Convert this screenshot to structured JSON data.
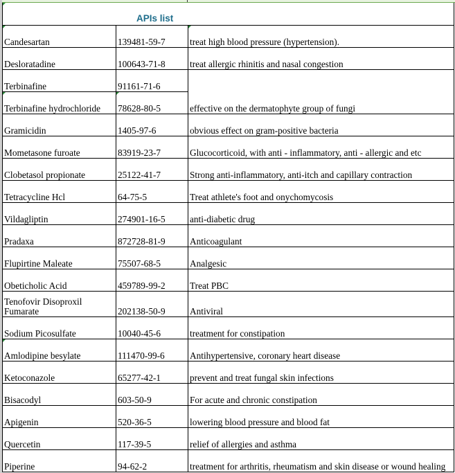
{
  "title": "APIs list",
  "rows": [
    {
      "name": "Candesartan",
      "cas": "139481-59-7",
      "use": " treat high blood pressure (hypertension)."
    },
    {
      "name": "Desloratadine",
      "cas": "100643-71-8",
      "use": "treat allergic rhinitis and nasal congestion"
    },
    {
      "name": "Terbinafine",
      "cas": "91161-71-6",
      "use": ""
    },
    {
      "name": "Terbinafine hydrochloride",
      "cas": "78628-80-5",
      "use": "effective on the dermatophyte group of fungi"
    },
    {
      "name": "Gramicidin",
      "cas": "1405-97-6",
      "use": "obvious effect on gram-positive bacteria"
    },
    {
      "name": "Mometasone furoate",
      "cas": "83919-23-7",
      "use": "Glucocorticoid, with anti - inflammatory, anti - allergic and etc"
    },
    {
      "name": "Clobetasol propionate",
      "cas": "25122-41-7",
      "use": "Strong anti-inflammatory, anti-itch and capillary contraction"
    },
    {
      "name": "Tetracycline Hcl",
      "cas": "64-75-5",
      "use": "Treat athlete's foot and onychomycosis"
    },
    {
      "name": "Vildagliptin",
      "cas": "274901-16-5",
      "use": "anti-diabetic drug"
    },
    {
      "name": "Pradaxa",
      "cas": "872728-81-9",
      "use": "Anticoagulant"
    },
    {
      "name": "Flupirtine Maleate",
      "cas": "75507-68-5",
      "use": "Analgesic"
    },
    {
      "name": "Obeticholic Acid",
      "cas": "459789-99-2",
      "use": "Treat PBC"
    },
    {
      "name": "Tenofovir Disoproxil Fumarate",
      "cas": "202138-50-9",
      "use": "Antiviral"
    },
    {
      "name": "Sodium Picosulfate",
      "cas": "10040-45-6",
      "use": " treatment for constipation"
    },
    {
      "name": "Amlodipine besylate",
      "cas": " 111470-99-6",
      "use": "Antihypertensive, coronary heart disease"
    },
    {
      "name": "Ketoconazole",
      "cas": "65277-42-1",
      "use": "prevent and treat fungal skin infections"
    },
    {
      "name": "Bisacodyl",
      "cas": "603-50-9",
      "use": "For acute and chronic constipation"
    },
    {
      "name": "Apigenin",
      "cas": "520-36-5",
      "use": "lowering blood pressure and blood fat"
    },
    {
      "name": "Quercetin",
      "cas": "117-39-5",
      "use": "relief of allergies and asthma"
    },
    {
      "name": "Piperine",
      "cas": "94-62-2",
      "use": "treatment for arthritis, rheumatism and skin disease or wound healing"
    }
  ]
}
